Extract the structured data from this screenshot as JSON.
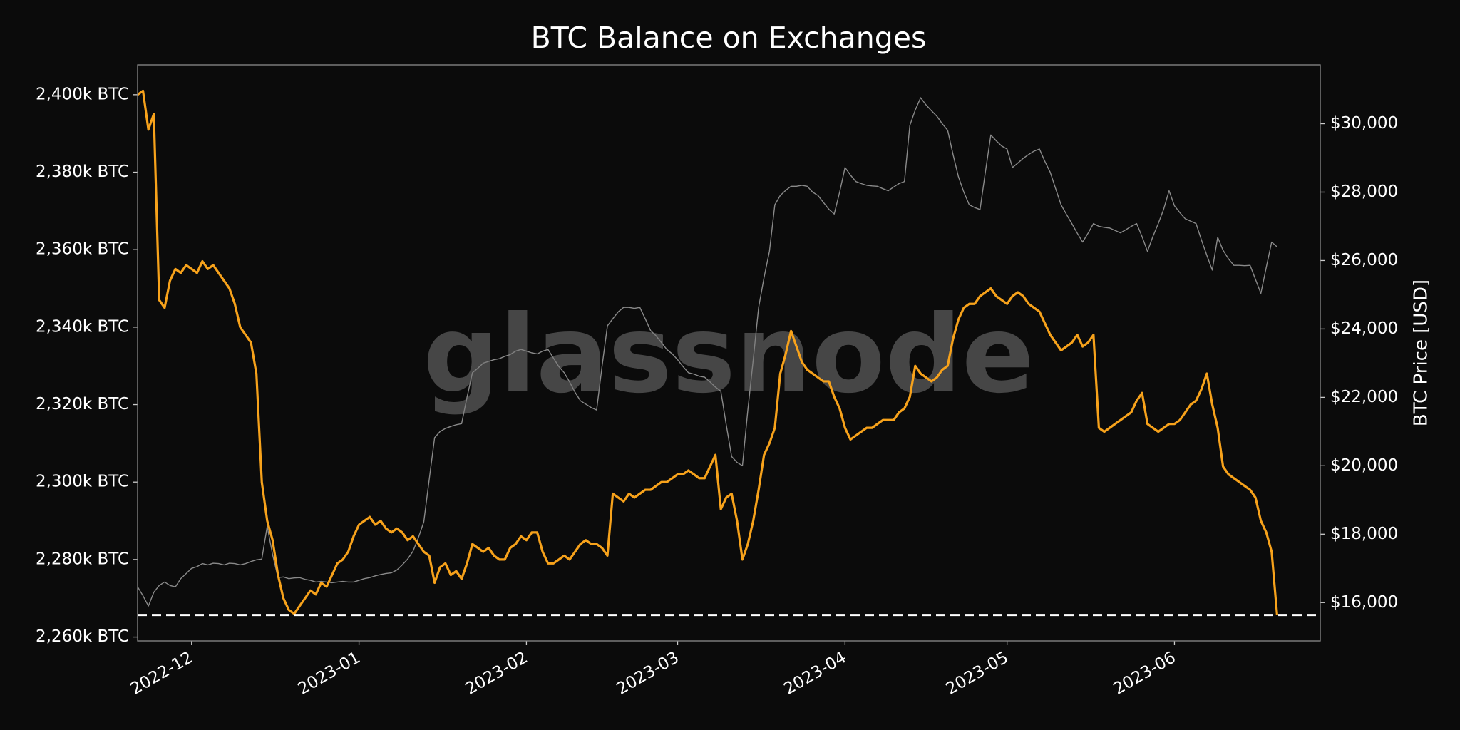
{
  "chart_data": {
    "type": "line",
    "title": "BTC Balance on Exchanges",
    "y2label": "BTC Price [USD]",
    "watermark": "glassnode",
    "xlim": [
      0,
      219
    ],
    "xticks": [
      {
        "value": 10,
        "label": "2022-12"
      },
      {
        "value": 41,
        "label": "2023-01"
      },
      {
        "value": 72,
        "label": "2023-02"
      },
      {
        "value": 100,
        "label": "2023-03"
      },
      {
        "value": 131,
        "label": "2023-04"
      },
      {
        "value": 161,
        "label": "2023-05"
      },
      {
        "value": 192,
        "label": "2023-06"
      }
    ],
    "ylim": [
      2259000,
      2407700
    ],
    "yticks": [
      {
        "value": 2260000,
        "label": "2,260k BTC"
      },
      {
        "value": 2280000,
        "label": "2,280k BTC"
      },
      {
        "value": 2300000,
        "label": "2,300k BTC"
      },
      {
        "value": 2320000,
        "label": "2,320k BTC"
      },
      {
        "value": 2340000,
        "label": "2,340k BTC"
      },
      {
        "value": 2360000,
        "label": "2,360k BTC"
      },
      {
        "value": 2380000,
        "label": "2,380k BTC"
      },
      {
        "value": 2400000,
        "label": "2,400k BTC"
      }
    ],
    "y2lim": [
      14880,
      31720
    ],
    "y2ticks": [
      {
        "value": 16000,
        "label": "$16,000"
      },
      {
        "value": 18000,
        "label": "$18,000"
      },
      {
        "value": 20000,
        "label": "$20,000"
      },
      {
        "value": 22000,
        "label": "$22,000"
      },
      {
        "value": 24000,
        "label": "$24,000"
      },
      {
        "value": 26000,
        "label": "$26,000"
      },
      {
        "value": 28000,
        "label": "$28,000"
      },
      {
        "value": 30000,
        "label": "$30,000"
      }
    ],
    "reference_line": 2265700,
    "series": [
      {
        "axis": "y2",
        "color": "#8a8a8a",
        "values": [
          16460,
          16200,
          15900,
          16300,
          16500,
          16600,
          16500,
          16460,
          16700,
          16850,
          17000,
          17050,
          17140,
          17100,
          17150,
          17140,
          17100,
          17150,
          17140,
          17100,
          17140,
          17200,
          17250,
          17270,
          18230,
          17400,
          16730,
          16750,
          16700,
          16720,
          16730,
          16680,
          16650,
          16600,
          16620,
          16600,
          16580,
          16600,
          16620,
          16600,
          16600,
          16650,
          16700,
          16730,
          16780,
          16820,
          16850,
          16870,
          16950,
          17100,
          17270,
          17500,
          17900,
          18360,
          19600,
          20820,
          21000,
          21090,
          21150,
          21200,
          21230,
          22000,
          22720,
          22850,
          23000,
          23050,
          23100,
          23130,
          23200,
          23250,
          23350,
          23400,
          23350,
          23300,
          23270,
          23350,
          23400,
          23150,
          22900,
          22720,
          22450,
          22150,
          21900,
          21800,
          21700,
          21630,
          22900,
          24090,
          24300,
          24500,
          24630,
          24630,
          24600,
          24630,
          24300,
          23950,
          23800,
          23600,
          23400,
          23270,
          23100,
          22900,
          22720,
          22680,
          22620,
          22590,
          22450,
          22300,
          22180,
          21200,
          20270,
          20100,
          20000,
          21630,
          23100,
          24630,
          25500,
          26270,
          27630,
          27900,
          28050,
          28170,
          28170,
          28200,
          28170,
          28000,
          27900,
          27700,
          27500,
          27360,
          28000,
          28720,
          28500,
          28310,
          28250,
          28200,
          28180,
          28170,
          28100,
          28040,
          28150,
          28250,
          28310,
          29950,
          30400,
          30760,
          30550,
          30380,
          30220,
          30000,
          29810,
          29100,
          28450,
          28000,
          27630,
          27550,
          27490,
          28600,
          29670,
          29500,
          29350,
          29260,
          28720,
          28850,
          28990,
          29100,
          29200,
          29260,
          28900,
          28580,
          28100,
          27630,
          27350,
          27080,
          26800,
          26540,
          26800,
          27080,
          27000,
          26970,
          26950,
          26880,
          26810,
          26900,
          27000,
          27080,
          26700,
          26270,
          26700,
          27080,
          27500,
          28040,
          27600,
          27400,
          27220,
          27150,
          27080,
          26600,
          26150,
          25720,
          26680,
          26300,
          26050,
          25860,
          25860,
          25850,
          25860,
          25450,
          25040,
          25800,
          26540,
          26400
        ]
      },
      {
        "color": "#f7a21b",
        "values": [
          2400000,
          2401000,
          2391000,
          2395000,
          2347000,
          2345000,
          2352000,
          2355000,
          2354000,
          2356000,
          2355000,
          2354000,
          2357000,
          2355000,
          2356000,
          2354000,
          2352000,
          2350000,
          2346000,
          2340000,
          2338000,
          2336000,
          2328000,
          2300000,
          2290000,
          2285000,
          2276000,
          2270000,
          2267000,
          2266000,
          2268000,
          2270000,
          2272000,
          2271000,
          2274000,
          2273000,
          2276000,
          2279000,
          2280000,
          2282000,
          2286000,
          2289000,
          2290000,
          2291000,
          2289000,
          2290000,
          2288000,
          2287000,
          2288000,
          2287000,
          2285000,
          2286000,
          2284000,
          2282000,
          2281000,
          2274000,
          2278000,
          2279000,
          2276000,
          2277000,
          2275000,
          2279000,
          2284000,
          2283000,
          2282000,
          2283000,
          2281000,
          2280000,
          2280000,
          2283000,
          2284000,
          2286000,
          2285000,
          2287000,
          2287000,
          2282000,
          2279000,
          2279000,
          2280000,
          2281000,
          2280000,
          2282000,
          2284000,
          2285000,
          2284000,
          2284000,
          2283000,
          2281000,
          2297000,
          2296000,
          2295000,
          2297000,
          2296000,
          2297000,
          2298000,
          2298000,
          2299000,
          2300000,
          2300000,
          2301000,
          2302000,
          2302000,
          2303000,
          2302000,
          2301000,
          2301000,
          2304000,
          2307000,
          2293000,
          2296000,
          2297000,
          2290000,
          2280000,
          2284000,
          2290000,
          2298000,
          2307000,
          2310000,
          2314000,
          2328000,
          2333000,
          2339000,
          2335000,
          2331000,
          2329000,
          2328000,
          2327000,
          2326000,
          2326000,
          2322000,
          2319000,
          2314000,
          2311000,
          2312000,
          2313000,
          2314000,
          2314000,
          2315000,
          2316000,
          2316000,
          2316000,
          2318000,
          2319000,
          2322000,
          2330000,
          2328000,
          2327000,
          2326000,
          2327000,
          2329000,
          2330000,
          2337000,
          2342000,
          2345000,
          2346000,
          2346000,
          2348000,
          2349000,
          2350000,
          2348000,
          2347000,
          2346000,
          2348000,
          2349000,
          2348000,
          2346000,
          2345000,
          2344000,
          2341000,
          2338000,
          2336000,
          2334000,
          2335000,
          2336000,
          2338000,
          2335000,
          2336000,
          2338000,
          2314000,
          2313000,
          2314000,
          2315000,
          2316000,
          2317000,
          2318000,
          2321000,
          2323000,
          2315000,
          2314000,
          2313000,
          2314000,
          2315000,
          2315000,
          2316000,
          2318000,
          2320000,
          2321000,
          2324000,
          2328000,
          2320000,
          2314000,
          2304000,
          2302000,
          2301000,
          2300000,
          2299000,
          2298000,
          2296000,
          2290000,
          2287000,
          2282000,
          2265700
        ]
      }
    ]
  }
}
